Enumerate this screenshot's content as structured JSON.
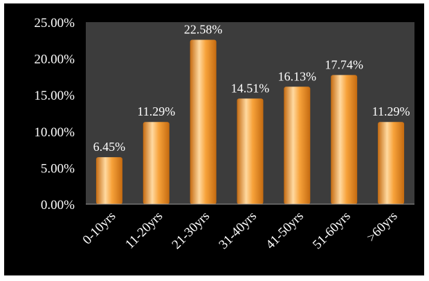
{
  "chart_data": {
    "type": "bar",
    "title": "",
    "xlabel": "",
    "ylabel": "",
    "categories": [
      "0-10yrs",
      "11-20yrs",
      "21-30yrs",
      "31-40yrs",
      "41-50yrs",
      "51-60yrs",
      ">60yrs"
    ],
    "values": [
      6.45,
      11.29,
      22.58,
      14.51,
      16.13,
      17.74,
      11.29
    ],
    "data_labels": [
      "6.45%",
      "11.29%",
      "22.58%",
      "14.51%",
      "16.13%",
      "17.74%",
      "11.29%"
    ],
    "y_ticks": [
      "0.00%",
      "5.00%",
      "10.00%",
      "15.00%",
      "20.00%",
      "25.00%"
    ],
    "ylim": [
      0,
      25
    ],
    "grid": false,
    "legend": "none",
    "colors": {
      "background": "#000000",
      "plot_area": "#3c3c3c",
      "bar_light": "#ffd9a0",
      "bar_mid": "#f7a23a",
      "bar_dark": "#c46a10",
      "text": "#ffffff",
      "axis": "#9a9a9a"
    }
  }
}
